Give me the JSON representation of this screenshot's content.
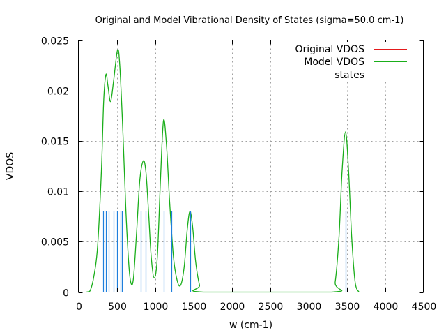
{
  "chart_data": {
    "type": "line",
    "title": "Original and Model Vibrational Density of States (sigma=50.0 cm-1)",
    "xlabel": "w (cm-1)",
    "ylabel": "VDOS",
    "xlim": [
      0,
      4500
    ],
    "ylim": [
      0,
      0.025
    ],
    "grid": true,
    "legend_position": "top-right",
    "x_ticks": [
      {
        "value": 0,
        "label": "0"
      },
      {
        "value": 500,
        "label": "500"
      },
      {
        "value": 1000,
        "label": "1000"
      },
      {
        "value": 1500,
        "label": "1500"
      },
      {
        "value": 2000,
        "label": "2000"
      },
      {
        "value": 2500,
        "label": "2500"
      },
      {
        "value": 3000,
        "label": "3000"
      },
      {
        "value": 3500,
        "label": "3500"
      },
      {
        "value": 4000,
        "label": "4000"
      },
      {
        "value": 4500,
        "label": "4500"
      }
    ],
    "y_ticks": [
      {
        "value": 0,
        "label": "0"
      },
      {
        "value": 0.005,
        "label": "0.005"
      },
      {
        "value": 0.01,
        "label": "0.01"
      },
      {
        "value": 0.015,
        "label": "0.015"
      },
      {
        "value": 0.02,
        "label": "0.02"
      },
      {
        "value": 0.025,
        "label": "0.025"
      }
    ],
    "series": [
      {
        "name": "Original VDOS",
        "color": "#e41a1c",
        "x": [],
        "y": []
      },
      {
        "name": "Model VDOS",
        "color": "#1aae1a",
        "x": [
          100,
          150,
          200,
          250,
          300,
          330,
          360,
          385,
          420,
          460,
          510,
          540,
          580,
          620,
          660,
          690,
          720,
          760,
          800,
          845,
          880,
          915,
          950,
          990,
          1030,
          1070,
          1110,
          1150,
          1190,
          1240,
          1290,
          1335,
          1380,
          1420,
          1455,
          1490,
          1530,
          1580,
          1630,
          3300,
          3350,
          3400,
          3440,
          3485,
          3525,
          3565,
          3610,
          3660
        ],
        "y": [
          0,
          0.0001,
          0.0015,
          0.0045,
          0.012,
          0.019,
          0.0216,
          0.0205,
          0.0189,
          0.021,
          0.024,
          0.0225,
          0.016,
          0.008,
          0.0025,
          0.0008,
          0.0015,
          0.006,
          0.011,
          0.013,
          0.012,
          0.008,
          0.0035,
          0.0014,
          0.0035,
          0.011,
          0.017,
          0.0145,
          0.009,
          0.0035,
          0.0011,
          0.0007,
          0.0025,
          0.0062,
          0.008,
          0.0065,
          0.003,
          0.0007,
          0,
          0,
          0.001,
          0.0055,
          0.012,
          0.0159,
          0.012,
          0.0055,
          0.001,
          0
        ]
      },
      {
        "name": "states",
        "color": "#1e7fdc",
        "type": "impulse",
        "x": [
          321,
          357,
          397,
          457,
          506,
          552,
          570,
          815,
          875,
          1112,
          1212,
          1460,
          3488
        ],
        "y": [
          0.008,
          0.008,
          0.008,
          0.008,
          0.008,
          0.008,
          0.008,
          0.008,
          0.008,
          0.008,
          0.008,
          0.008,
          0.008
        ]
      }
    ]
  }
}
